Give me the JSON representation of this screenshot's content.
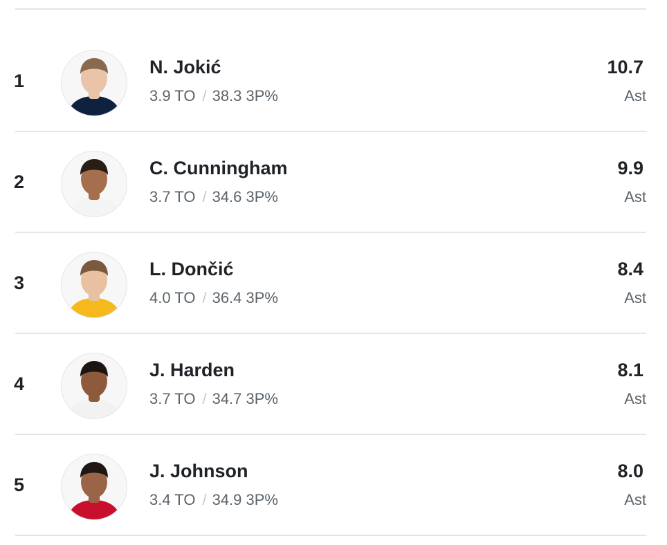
{
  "leaders": [
    {
      "rank": "1",
      "name": "N. Jokić",
      "to": "3.9 TO",
      "separator": "/",
      "three_pt": "38.3 3P%",
      "value": "10.7",
      "unit": "Ast",
      "avatar_icon": "player-headshot-icon",
      "jersey_color": "#0e2240",
      "skin_color": "#e9c4a8",
      "hair_color": "#8a6a4e"
    },
    {
      "rank": "2",
      "name": "C. Cunningham",
      "to": "3.7 TO",
      "separator": "/",
      "three_pt": "34.6 3P%",
      "value": "9.9",
      "unit": "Ast",
      "avatar_icon": "player-headshot-icon",
      "jersey_color": "#f4f4f4",
      "skin_color": "#a56f4d",
      "hair_color": "#2a1d16"
    },
    {
      "rank": "3",
      "name": "L. Dončić",
      "to": "4.0 TO",
      "separator": "/",
      "three_pt": "36.4 3P%",
      "value": "8.4",
      "unit": "Ast",
      "avatar_icon": "player-headshot-icon",
      "jersey_color": "#f6b91d",
      "skin_color": "#e8c0a2",
      "hair_color": "#7a5a3e"
    },
    {
      "rank": "4",
      "name": "J. Harden",
      "to": "3.7 TO",
      "separator": "/",
      "three_pt": "34.7 3P%",
      "value": "8.1",
      "unit": "Ast",
      "avatar_icon": "player-headshot-icon",
      "jersey_color": "#f2f2f2",
      "skin_color": "#8e5a3c",
      "hair_color": "#1c1512"
    },
    {
      "rank": "5",
      "name": "J. Johnson",
      "to": "3.4 TO",
      "separator": "/",
      "three_pt": "34.9 3P%",
      "value": "8.0",
      "unit": "Ast",
      "avatar_icon": "player-headshot-icon",
      "jersey_color": "#c8102e",
      "skin_color": "#9a6446",
      "hair_color": "#1e1713"
    }
  ]
}
